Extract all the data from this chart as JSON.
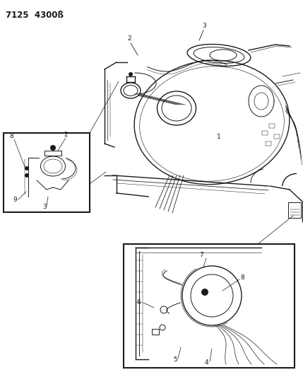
{
  "title_code": "7125  4300ß",
  "bg_color": "#ffffff",
  "line_color": "#1a1a1a",
  "label_color": "#1a1a1a",
  "title_fontsize": 8.5,
  "label_fontsize": 6.5,
  "fig_width": 4.29,
  "fig_height": 5.33,
  "dpi": 100
}
